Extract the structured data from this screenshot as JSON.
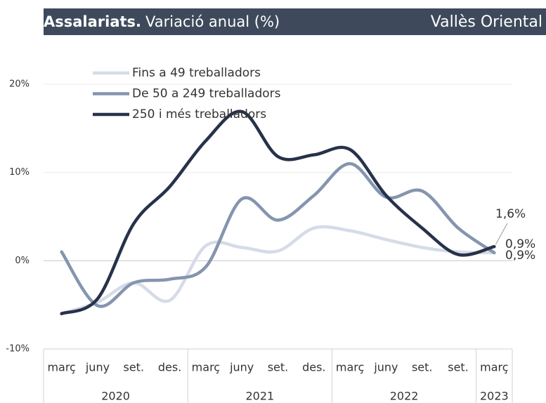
{
  "chart_data": {
    "type": "line",
    "title": "Assalariats.",
    "subtitle": "Variació anual (%)",
    "region": "Vallès Oriental",
    "categories": [
      "març",
      "juny",
      "set.",
      "des.",
      "març",
      "juny",
      "set.",
      "des.",
      "març",
      "juny",
      "set.",
      "set.",
      "març"
    ],
    "x_groups": [
      {
        "label": "2020",
        "count": 4
      },
      {
        "label": "2021",
        "count": 4
      },
      {
        "label": "2022",
        "count": 4
      },
      {
        "label": "2023",
        "count": 1
      }
    ],
    "ylim": [
      -10,
      20
    ],
    "yticks": [
      {
        "value": -10,
        "label": "-10%"
      },
      {
        "value": 0,
        "label": "0%"
      },
      {
        "value": 10,
        "label": "10%"
      },
      {
        "value": 20,
        "label": "20%"
      }
    ],
    "grid": true,
    "legend": "top-left",
    "series": [
      {
        "name": "Fins a 49 treballadors",
        "color": "#d5dce7",
        "values": [
          -6.0,
          -4.7,
          -2.5,
          -4.5,
          1.7,
          1.5,
          1.1,
          3.7,
          3.4,
          2.4,
          1.5,
          1.0,
          0.9
        ],
        "value_labels": [
          null,
          null,
          null,
          null,
          null,
          null,
          null,
          null,
          null,
          null,
          null,
          null,
          "0,9%"
        ]
      },
      {
        "name": "De 50 a 249 treballadors",
        "color": "#8595af",
        "values": [
          1.0,
          -5.1,
          -2.5,
          -2.1,
          -0.7,
          7.0,
          4.6,
          7.4,
          11.0,
          7.2,
          7.9,
          3.7,
          0.9
        ],
        "value_labels": [
          null,
          null,
          null,
          null,
          null,
          null,
          null,
          null,
          null,
          null,
          null,
          null,
          "0,9%"
        ]
      },
      {
        "name": "250 i més treballadors",
        "color": "#27324a",
        "values": [
          -6.0,
          -4.3,
          4.2,
          8.4,
          13.6,
          16.9,
          11.8,
          12.0,
          12.6,
          7.4,
          3.7,
          0.7,
          1.6
        ],
        "value_labels": [
          null,
          null,
          null,
          null,
          null,
          null,
          null,
          null,
          null,
          null,
          null,
          null,
          "1,6%"
        ]
      }
    ]
  }
}
